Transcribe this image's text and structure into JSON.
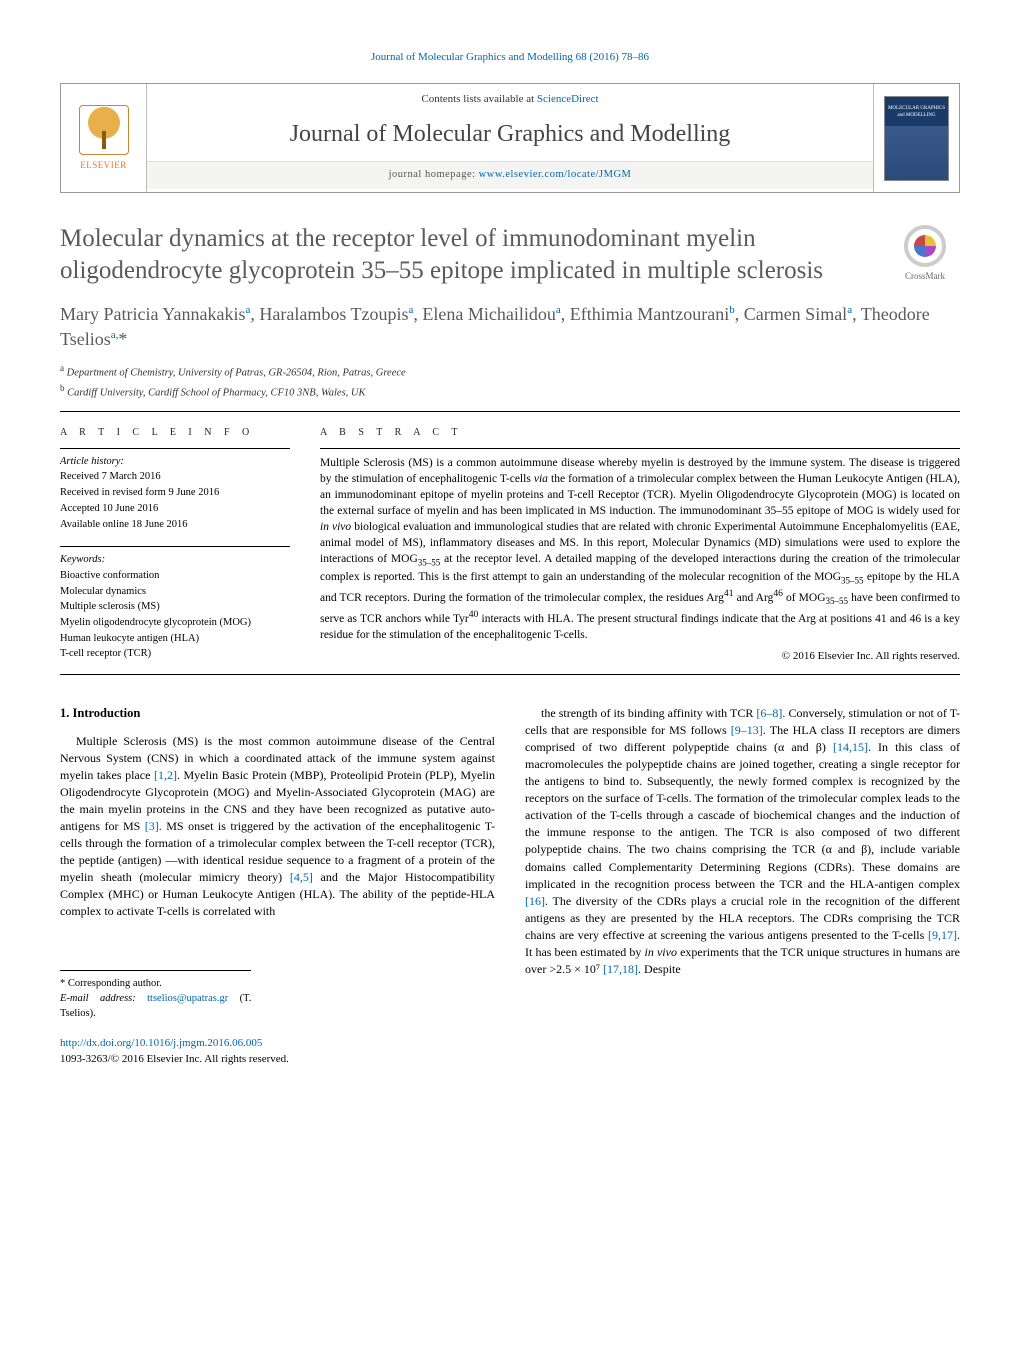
{
  "colors": {
    "link": "#0066aa",
    "text": "#000000",
    "title_gray": "#5a5a5a",
    "background": "#ffffff",
    "rule": "#000000",
    "elsevier_orange": "#e8762d"
  },
  "header": {
    "top_citation": "Journal of Molecular Graphics and Modelling 68 (2016) 78–86",
    "contents_prefix": "Contents lists available at ",
    "contents_link": "ScienceDirect",
    "journal_name": "Journal of Molecular Graphics and Modelling",
    "homepage_prefix": "journal homepage: ",
    "homepage_link": "www.elsevier.com/locate/JMGM",
    "elsevier_label": "ELSEVIER",
    "cover_label": "MOLECULAR GRAPHICS and MODELLING"
  },
  "crossmark_label": "CrossMark",
  "title": "Molecular dynamics at the receptor level of immunodominant myelin oligodendrocyte glycoprotein 35–55 epitope implicated in multiple sclerosis",
  "authors_html": "Mary Patricia Yannakakis<sup>a</sup>, Haralambos Tzoupis<sup>a</sup>, Elena Michailidou<sup>a</sup>, Efthimia Mantzourani<sup>b</sup>, Carmen Simal<sup>a</sup>, Theodore Tselios<sup>a,</sup>*",
  "affiliations": [
    {
      "mark": "a",
      "text": "Department of Chemistry, University of Patras, GR-26504, Rion, Patras, Greece"
    },
    {
      "mark": "b",
      "text": "Cardiff University, Cardiff School of Pharmacy, CF10 3NB, Wales, UK"
    }
  ],
  "article_info": {
    "heading": "a r t i c l e   i n f o",
    "history_label": "Article history:",
    "history": [
      "Received 7 March 2016",
      "Received in revised form 9 June 2016",
      "Accepted 10 June 2016",
      "Available online 18 June 2016"
    ],
    "keywords_label": "Keywords:",
    "keywords": [
      "Bioactive conformation",
      "Molecular dynamics",
      "Multiple sclerosis (MS)",
      "Myelin oligodendrocyte glycoprotein (MOG)",
      "Human leukocyte antigen (HLA)",
      "T-cell receptor (TCR)"
    ]
  },
  "abstract": {
    "heading": "a b s t r a c t",
    "text": "Multiple Sclerosis (MS) is a common autoimmune disease whereby myelin is destroyed by the immune system. The disease is triggered by the stimulation of encephalitogenic T-cells via the formation of a trimolecular complex between the Human Leukocyte Antigen (HLA), an immunodominant epitope of myelin proteins and T-cell Receptor (TCR). Myelin Oligodendrocyte Glycoprotein (MOG) is located on the external surface of myelin and has been implicated in MS induction. The immunodominant 35–55 epitope of MOG is widely used for in vivo biological evaluation and immunological studies that are related with chronic Experimental Autoimmune Encephalomyelitis (EAE, animal model of MS), inflammatory diseases and MS. In this report, Molecular Dynamics (MD) simulations were used to explore the interactions of MOG35–55 at the receptor level. A detailed mapping of the developed interactions during the creation of the trimolecular complex is reported. This is the first attempt to gain an understanding of the molecular recognition of the MOG35–55 epitope by the HLA and TCR receptors. During the formation of the trimolecular complex, the residues Arg41 and Arg46 of MOG35–55 have been confirmed to serve as TCR anchors while Tyr40 interacts with HLA. The present structural findings indicate that the Arg at positions 41 and 46 is a key residue for the stimulation of the encephalitogenic T-cells.",
    "copyright": "© 2016 Elsevier Inc. All rights reserved."
  },
  "intro": {
    "heading": "1. Introduction",
    "col1": "Multiple Sclerosis (MS) is the most common autoimmune disease of the Central Nervous System (CNS) in which a coordinated attack of the immune system against myelin takes place [1,2]. Myelin Basic Protein (MBP), Proteolipid Protein (PLP), Myelin Oligodendrocyte Glycoprotein (MOG) and Myelin-Associated Glycoprotein (MAG) are the main myelin proteins in the CNS and they have been recognized as putative auto-antigens for MS [3]. MS onset is triggered by the activation of the encephalitogenic T-cells through the formation of a trimolecular complex between the T-cell receptor (TCR), the peptide (antigen) —with identical residue sequence to a fragment of a protein of the myelin sheath (molecular mimicry theory) [4,5] and the Major Histocompatibility Complex (MHC) or Human Leukocyte Antigen (HLA). The ability of the peptide-HLA complex to activate T-cells is correlated with",
    "col2": "the strength of its binding affinity with TCR [6–8]. Conversely, stimulation or not of T-cells that are responsible for MS follows [9–13]. The HLA class II receptors are dimers comprised of two different polypeptide chains (α and β) [14,15]. In this class of macromolecules the polypeptide chains are joined together, creating a single receptor for the antigens to bind to. Subsequently, the newly formed complex is recognized by the receptors on the surface of T-cells. The formation of the trimolecular complex leads to the activation of the T-cells through a cascade of biochemical changes and the induction of the immune response to the antigen. The TCR is also composed of two different polypeptide chains. The two chains comprising the TCR (α and β), include variable domains called Complementarity Determining Regions (CDRs). These domains are implicated in the recognition process between the TCR and the HLA-antigen complex [16]. The diversity of the CDRs plays a crucial role in the recognition of the different antigens as they are presented by the HLA receptors. The CDRs comprising the TCR chains are very effective at screening the various antigens presented to the T-cells [9,17]. It has been estimated by in vivo experiments that the TCR unique structures in humans are over >2.5 × 10⁷ [17,18]. Despite",
    "refs_col1": [
      "[1,2]",
      "[3]",
      "[4,5]"
    ],
    "refs_col2": [
      "[6–8]",
      "[9–13]",
      "[14,15]",
      "[16]",
      "[9,17]",
      "[17,18]"
    ]
  },
  "footnotes": {
    "corresponding": "* Corresponding author.",
    "email_label": "E-mail address: ",
    "email": "ttselios@upatras.gr",
    "email_suffix": " (T. Tselios)."
  },
  "doi": {
    "link": "http://dx.doi.org/10.1016/j.jmgm.2016.06.005",
    "line2": "1093-3263/© 2016 Elsevier Inc. All rights reserved."
  }
}
